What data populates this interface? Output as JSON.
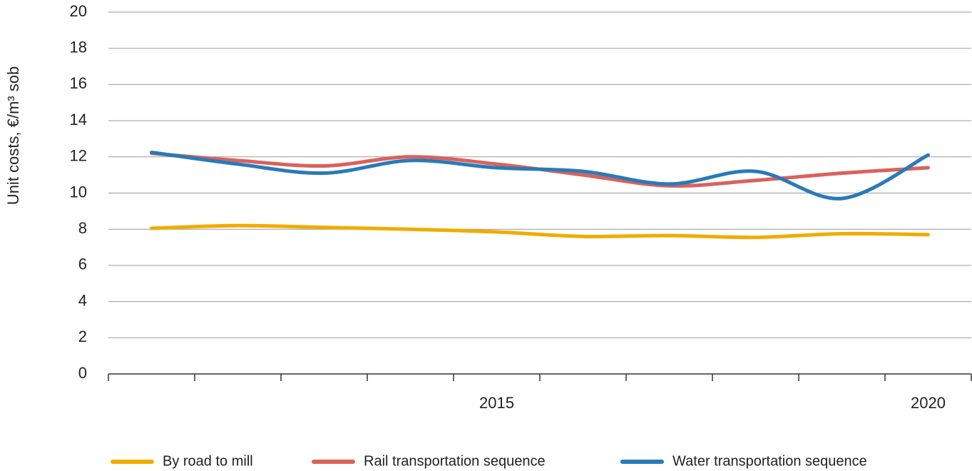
{
  "chart_data": {
    "type": "line",
    "y_label": "Unit costs, €/m³ sob",
    "categories": [
      null,
      null,
      null,
      null,
      "2015",
      null,
      null,
      null,
      null,
      "2020"
    ],
    "series": [
      {
        "name": "By road to mill",
        "color": "#f0ac00",
        "values": [
          8.05,
          8.2,
          8.1,
          8.0,
          7.85,
          7.6,
          7.65,
          7.55,
          7.75,
          7.7
        ]
      },
      {
        "name": "Rail transportation sequence",
        "color": "#d9625b",
        "values": [
          12.2,
          11.8,
          11.5,
          12.0,
          11.6,
          11.0,
          10.4,
          10.7,
          11.1,
          11.4
        ]
      },
      {
        "name": "Water transportation sequence",
        "color": "#2a7ab9",
        "values": [
          12.25,
          11.6,
          11.1,
          11.8,
          11.4,
          11.2,
          10.5,
          11.2,
          9.7,
          12.1
        ]
      }
    ],
    "ylim": [
      0,
      20
    ],
    "yticks": [
      0,
      2,
      4,
      6,
      8,
      10,
      12,
      14,
      16,
      18,
      20
    ],
    "grid": true
  }
}
